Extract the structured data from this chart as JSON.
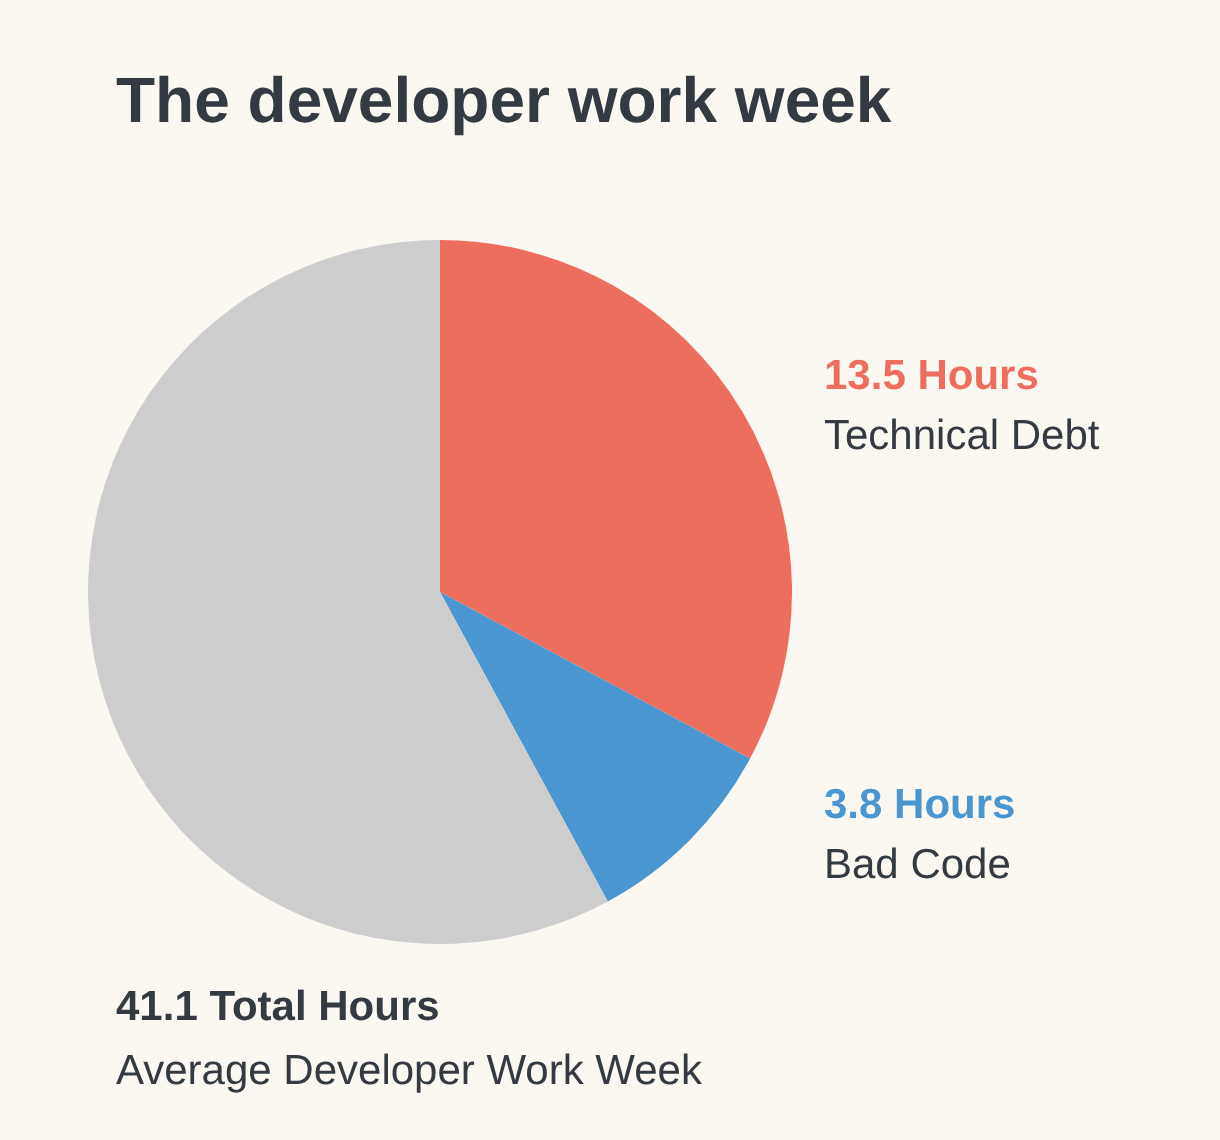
{
  "chart_data": {
    "type": "pie",
    "title": "The developer work week",
    "categories": [
      "Technical Debt",
      "Bad Code",
      "Average Developer Work Week"
    ],
    "values": [
      13.5,
      3.8,
      23.8
    ],
    "colors": [
      "#ee6e5d",
      "#4a96d0",
      "#cdcdcd"
    ],
    "value_labels": [
      "13.5 Hours",
      "3.8 Hours",
      null
    ],
    "annotations": [
      "41.1 Total Hours"
    ],
    "legend": false
  }
}
